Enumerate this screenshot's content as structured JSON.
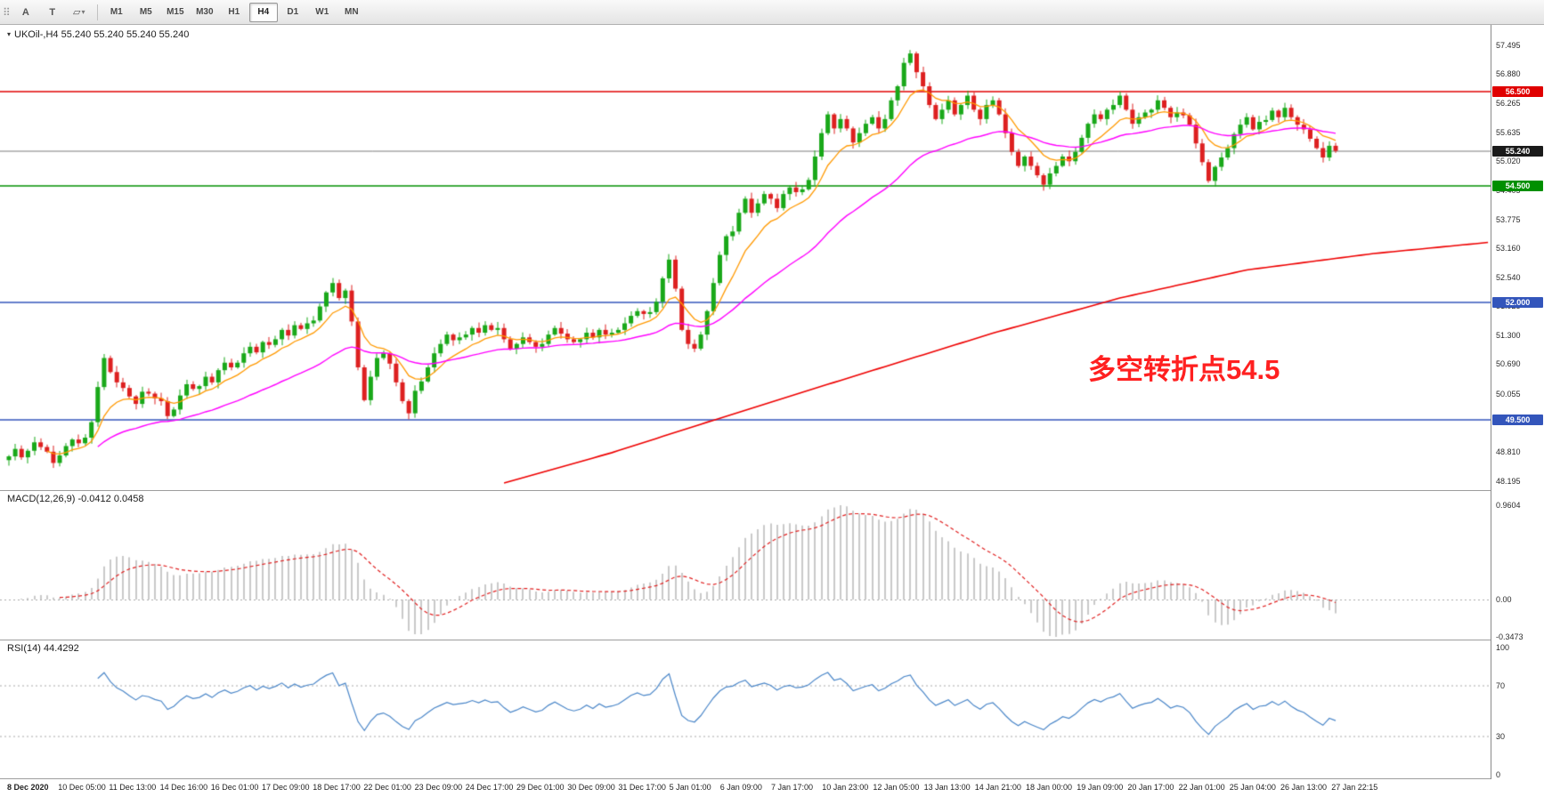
{
  "toolbar": {
    "tools": [
      {
        "id": "toolbar-handle",
        "glyph": "⠿"
      },
      {
        "id": "text-tool",
        "glyph": "A"
      },
      {
        "id": "text-label-tool",
        "glyph": "T"
      },
      {
        "id": "shapes-dropdown",
        "glyph": "▱",
        "caret": "▾"
      }
    ],
    "timeframes": [
      "M1",
      "M5",
      "M15",
      "M30",
      "H1",
      "H4",
      "D1",
      "W1",
      "MN"
    ],
    "active_timeframe": "H4"
  },
  "chart": {
    "dropdown_icon": "▾",
    "title_text": "UKOil-,H4  55.240 55.240 55.240 55.240",
    "symbol": "UKOil-",
    "timeframe": "H4",
    "annotation": {
      "text": "多空转折点54.5",
      "color": "#ff2020"
    },
    "current_price": "55.240",
    "levels": [
      {
        "value": 56.5,
        "line_color": "#e00000",
        "badge": "56.500",
        "badge_bg": "#e00000"
      },
      {
        "value": 54.5,
        "line_color": "#009000",
        "badge": "54.500",
        "badge_bg": "#008f00"
      },
      {
        "value": 52.0,
        "line_color": "#3355bb",
        "badge": "52.000",
        "badge_bg": "#3355bb"
      },
      {
        "value": 49.5,
        "line_color": "#3355bb",
        "badge": "49.500",
        "badge_bg": "#3355bb"
      },
      {
        "value": 55.24,
        "line_color": "#7a7a7a",
        "badge": "55.240",
        "badge_bg": "#1a1a1a"
      }
    ],
    "price_axis_labels": [
      "57.495",
      "56.880",
      "56.265",
      "55.635",
      "55.020",
      "54.405",
      "53.775",
      "53.160",
      "52.540",
      "51.925",
      "51.300",
      "50.690",
      "50.055",
      "49.440",
      "48.810",
      "48.195"
    ],
    "time_axis_labels": [
      "8 Dec 2020",
      "10 Dec 05:00",
      "11 Dec 13:00",
      "14 Dec 16:00",
      "16 Dec 01:00",
      "17 Dec 09:00",
      "18 Dec 17:00",
      "22 Dec 01:00",
      "23 Dec 09:00",
      "24 Dec 17:00",
      "29 Dec 01:00",
      "30 Dec 09:00",
      "31 Dec 17:00",
      "5 Jan 01:00",
      "6 Jan 09:00",
      "7 Jan 17:00",
      "10 Jan 23:00",
      "12 Jan 05:00",
      "13 Jan 13:00",
      "14 Jan 21:00",
      "18 Jan 00:00",
      "19 Jan 09:00",
      "20 Jan 17:00",
      "22 Jan 01:00",
      "25 Jan 04:00",
      "26 Jan 13:00",
      "27 Jan 22:15"
    ]
  },
  "macd": {
    "header_text": "MACD(12,26,9) -0.0412 0.0458",
    "fast": 12,
    "slow": 26,
    "signal": 9,
    "axis_labels": [
      "0.9604",
      "0.00",
      "-0.3473"
    ],
    "histogram_color": "#b3b3b3",
    "signal_color": "#e02020"
  },
  "rsi": {
    "header_text": "RSI(14) 44.4292",
    "period": 14,
    "axis_labels": [
      "100",
      "70",
      "30",
      "0"
    ],
    "levels": [
      70,
      30
    ],
    "line_color": "#4a86c8"
  },
  "chart_data": {
    "type": "candlestick",
    "symbol": "UKOil-",
    "timeframe": "H4",
    "price_range": [
      48.195,
      57.495
    ],
    "up_color": "#19a819",
    "down_color": "#dd2020",
    "closes": [
      48.72,
      48.88,
      48.7,
      48.84,
      49.02,
      48.92,
      48.82,
      48.58,
      48.74,
      48.94,
      49.08,
      49.0,
      49.12,
      49.45,
      50.2,
      50.82,
      50.52,
      50.3,
      50.18,
      50.0,
      49.84,
      50.1,
      50.06,
      49.96,
      49.9,
      49.58,
      49.72,
      50.02,
      50.26,
      50.16,
      50.22,
      50.42,
      50.3,
      50.56,
      50.72,
      50.62,
      50.72,
      50.92,
      51.06,
      50.94,
      51.16,
      51.1,
      51.22,
      51.42,
      51.3,
      51.52,
      51.44,
      51.56,
      51.62,
      51.92,
      52.22,
      52.42,
      52.1,
      52.26,
      51.6,
      50.62,
      49.92,
      50.42,
      50.82,
      50.92,
      50.7,
      50.3,
      49.9,
      49.64,
      50.12,
      50.32,
      50.62,
      50.92,
      51.12,
      51.32,
      51.2,
      51.26,
      51.32,
      51.46,
      51.36,
      51.52,
      51.42,
      51.46,
      51.22,
      51.02,
      51.12,
      51.26,
      51.16,
      51.06,
      51.12,
      51.32,
      51.46,
      51.34,
      51.22,
      51.16,
      51.22,
      51.36,
      51.26,
      51.42,
      51.32,
      51.36,
      51.42,
      51.56,
      51.72,
      51.82,
      51.76,
      51.8,
      52.02,
      52.52,
      52.92,
      52.3,
      51.42,
      51.12,
      51.02,
      51.32,
      51.82,
      52.42,
      53.02,
      53.42,
      53.52,
      53.92,
      54.22,
      53.92,
      54.12,
      54.32,
      54.22,
      54.02,
      54.32,
      54.46,
      54.36,
      54.42,
      54.62,
      55.12,
      55.62,
      56.02,
      55.72,
      55.92,
      55.72,
      55.42,
      55.62,
      55.82,
      55.96,
      55.72,
      55.92,
      56.32,
      56.62,
      57.12,
      57.32,
      56.92,
      56.62,
      56.22,
      55.92,
      56.12,
      56.32,
      56.02,
      56.22,
      56.42,
      56.12,
      55.92,
      56.22,
      56.32,
      56.02,
      55.62,
      55.22,
      54.92,
      55.12,
      54.92,
      54.72,
      54.52,
      54.76,
      54.92,
      55.12,
      55.02,
      55.22,
      55.52,
      55.82,
      56.02,
      55.92,
      56.12,
      56.22,
      56.42,
      56.12,
      55.82,
      55.96,
      56.06,
      56.12,
      56.32,
      56.16,
      55.96,
      56.06,
      56.0,
      55.8,
      55.4,
      55.0,
      54.6,
      54.9,
      55.1,
      55.3,
      55.6,
      55.8,
      55.96,
      55.7,
      55.86,
      55.9,
      56.1,
      55.96,
      56.16,
      55.96,
      55.8,
      55.7,
      55.5,
      55.3,
      55.1,
      55.35,
      55.24
    ],
    "moving_averages": {
      "orange_ema_period": 9,
      "orange_color": "#ff9900",
      "magenta_ema_period": 34,
      "magenta_color": "#ff00ff",
      "red_ma_color": "#ee0000",
      "red_ma_keypoints": [
        [
          78,
          48.15
        ],
        [
          95,
          48.8
        ],
        [
          110,
          49.45
        ],
        [
          130,
          50.3
        ],
        [
          155,
          51.35
        ],
        [
          175,
          52.1
        ],
        [
          195,
          52.7
        ],
        [
          215,
          53.05
        ],
        [
          234,
          53.3
        ]
      ]
    }
  }
}
